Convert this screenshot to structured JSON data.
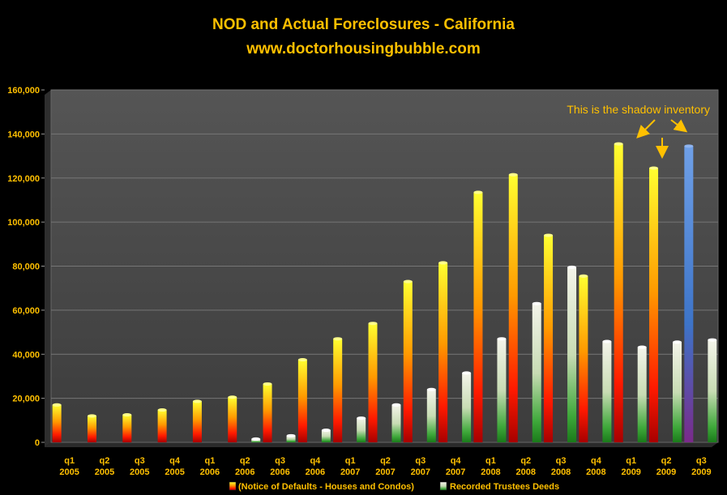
{
  "chart_data": {
    "type": "bar",
    "title": "NOD and Actual Foreclosures - California",
    "subtitle": "www.doctorhousingbubble.com",
    "categories": [
      [
        "q1",
        "2005"
      ],
      [
        "q2",
        "2005"
      ],
      [
        "q3",
        "2005"
      ],
      [
        "q4",
        "2005"
      ],
      [
        "q1",
        "2006"
      ],
      [
        "q2",
        "2006"
      ],
      [
        "q3",
        "2006"
      ],
      [
        "q4",
        "2006"
      ],
      [
        "q1",
        "2007"
      ],
      [
        "q2",
        "2007"
      ],
      [
        "q3",
        "2007"
      ],
      [
        "q4",
        "2007"
      ],
      [
        "q1",
        "2008"
      ],
      [
        "q2",
        "2008"
      ],
      [
        "q3",
        "2008"
      ],
      [
        "q4",
        "2008"
      ],
      [
        "q1",
        "2009"
      ],
      [
        "q2",
        "2009"
      ],
      [
        "q3",
        "2009"
      ]
    ],
    "series": [
      {
        "name": "(Notice of Defaults - Houses and Condos)",
        "values": [
          17000,
          12000,
          12500,
          14700,
          18600,
          20500,
          26500,
          37500,
          47000,
          54000,
          73000,
          81500,
          113500,
          121500,
          94000,
          75500,
          135500,
          124500,
          134500
        ]
      },
      {
        "name": "Recorded Trustees Deeds",
        "values": [
          0,
          0,
          0,
          0,
          0,
          1500,
          3000,
          5500,
          11000,
          17000,
          24000,
          31500,
          47000,
          63000,
          79500,
          45800,
          43200,
          45500,
          46500
        ]
      }
    ],
    "highlight_index": 18,
    "ylim": [
      0,
      160000
    ],
    "yticks": [
      0,
      20000,
      40000,
      60000,
      80000,
      100000,
      120000,
      140000,
      160000
    ],
    "ytick_labels": [
      "0",
      "20,000",
      "40,000",
      "60,000",
      "80,000",
      "100,000",
      "120,000",
      "140,000",
      "160,000"
    ],
    "annotation": "This is the shadow inventory",
    "grid": true,
    "legend_position": "bottom",
    "colors": {
      "background": "#000000",
      "plot_area": "#4a4a4a",
      "text": "#ffc000",
      "nod_top": "#ffff00",
      "nod_bottom": "#c00000",
      "deeds_top": "#ffffff",
      "deeds_bottom": "#1e8c1e",
      "highlight_top": "#5b8fd9",
      "highlight_bottom": "#1f4f9c"
    }
  }
}
